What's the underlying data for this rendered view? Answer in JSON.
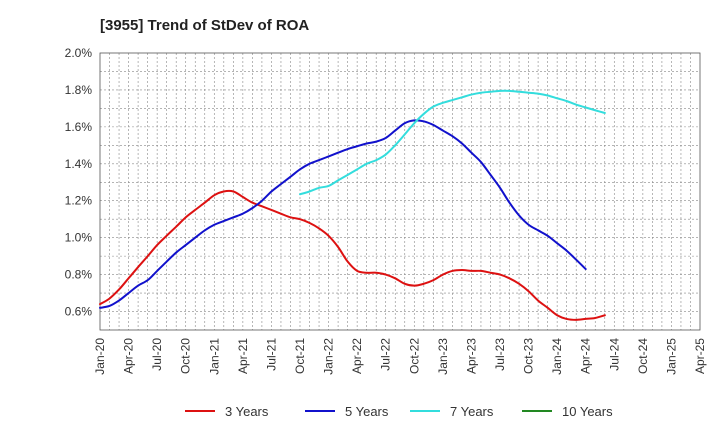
{
  "chart_data": {
    "type": "line",
    "title": "[3955]  Trend of StDev of ROA",
    "xlabel": "",
    "ylabel": "",
    "x_ticks": [
      "Jan-20",
      "Apr-20",
      "Jul-20",
      "Oct-20",
      "Jan-21",
      "Apr-21",
      "Jul-21",
      "Oct-21",
      "Jan-22",
      "Apr-22",
      "Jul-22",
      "Oct-22",
      "Jan-23",
      "Apr-23",
      "Jul-23",
      "Oct-23",
      "Jan-24",
      "Apr-24",
      "Jul-24",
      "Oct-24",
      "Jan-25",
      "Apr-25"
    ],
    "y_ticks": [
      "0.6%",
      "0.8%",
      "1.0%",
      "1.2%",
      "1.4%",
      "1.6%",
      "1.8%",
      "2.0%"
    ],
    "ylim": [
      0.5,
      2.0
    ],
    "xlim": [
      0,
      21
    ],
    "grid": true,
    "legend_position": "bottom",
    "series": [
      {
        "name": "3 Years",
        "color": "#dd1111",
        "points": [
          [
            0,
            0.64
          ],
          [
            0.33,
            0.67
          ],
          [
            0.67,
            0.72
          ],
          [
            1,
            0.78
          ],
          [
            1.33,
            0.84
          ],
          [
            1.67,
            0.9
          ],
          [
            2,
            0.96
          ],
          [
            2.33,
            1.01
          ],
          [
            2.67,
            1.06
          ],
          [
            3,
            1.11
          ],
          [
            3.33,
            1.15
          ],
          [
            3.67,
            1.19
          ],
          [
            4,
            1.23
          ],
          [
            4.33,
            1.25
          ],
          [
            4.67,
            1.25
          ],
          [
            5,
            1.22
          ],
          [
            5.33,
            1.19
          ],
          [
            5.67,
            1.17
          ],
          [
            6,
            1.15
          ],
          [
            6.33,
            1.13
          ],
          [
            6.67,
            1.11
          ],
          [
            7,
            1.1
          ],
          [
            7.33,
            1.08
          ],
          [
            7.67,
            1.05
          ],
          [
            8,
            1.01
          ],
          [
            8.33,
            0.95
          ],
          [
            8.67,
            0.87
          ],
          [
            9,
            0.82
          ],
          [
            9.33,
            0.81
          ],
          [
            9.67,
            0.81
          ],
          [
            10,
            0.8
          ],
          [
            10.33,
            0.78
          ],
          [
            10.67,
            0.75
          ],
          [
            11,
            0.74
          ],
          [
            11.33,
            0.75
          ],
          [
            11.67,
            0.77
          ],
          [
            12,
            0.8
          ],
          [
            12.33,
            0.82
          ],
          [
            12.67,
            0.825
          ],
          [
            13,
            0.82
          ],
          [
            13.33,
            0.82
          ],
          [
            13.67,
            0.81
          ],
          [
            14,
            0.8
          ],
          [
            14.33,
            0.78
          ],
          [
            14.67,
            0.75
          ],
          [
            15,
            0.71
          ],
          [
            15.33,
            0.66
          ],
          [
            15.67,
            0.62
          ],
          [
            16,
            0.58
          ],
          [
            16.33,
            0.56
          ],
          [
            16.67,
            0.555
          ],
          [
            17,
            0.56
          ],
          [
            17.33,
            0.565
          ],
          [
            17.67,
            0.58
          ]
        ]
      },
      {
        "name": "5 Years",
        "color": "#1111cc",
        "points": [
          [
            0,
            0.62
          ],
          [
            0.33,
            0.63
          ],
          [
            0.67,
            0.66
          ],
          [
            1,
            0.7
          ],
          [
            1.33,
            0.74
          ],
          [
            1.67,
            0.77
          ],
          [
            2,
            0.82
          ],
          [
            2.33,
            0.87
          ],
          [
            2.67,
            0.92
          ],
          [
            3,
            0.96
          ],
          [
            3.33,
            1.0
          ],
          [
            3.67,
            1.04
          ],
          [
            4,
            1.07
          ],
          [
            4.33,
            1.09
          ],
          [
            4.67,
            1.11
          ],
          [
            5,
            1.13
          ],
          [
            5.33,
            1.16
          ],
          [
            5.67,
            1.2
          ],
          [
            6,
            1.25
          ],
          [
            6.33,
            1.29
          ],
          [
            6.67,
            1.33
          ],
          [
            7,
            1.37
          ],
          [
            7.33,
            1.4
          ],
          [
            7.67,
            1.42
          ],
          [
            8,
            1.44
          ],
          [
            8.33,
            1.46
          ],
          [
            8.67,
            1.48
          ],
          [
            9,
            1.495
          ],
          [
            9.33,
            1.51
          ],
          [
            9.67,
            1.52
          ],
          [
            10,
            1.54
          ],
          [
            10.33,
            1.58
          ],
          [
            10.67,
            1.62
          ],
          [
            11,
            1.635
          ],
          [
            11.33,
            1.63
          ],
          [
            11.67,
            1.61
          ],
          [
            12,
            1.58
          ],
          [
            12.33,
            1.55
          ],
          [
            12.67,
            1.51
          ],
          [
            13,
            1.46
          ],
          [
            13.33,
            1.41
          ],
          [
            13.67,
            1.34
          ],
          [
            14,
            1.27
          ],
          [
            14.33,
            1.19
          ],
          [
            14.67,
            1.12
          ],
          [
            15,
            1.07
          ],
          [
            15.33,
            1.04
          ],
          [
            15.67,
            1.01
          ],
          [
            16,
            0.97
          ],
          [
            16.33,
            0.93
          ],
          [
            16.67,
            0.88
          ],
          [
            17,
            0.83
          ]
        ]
      },
      {
        "name": "7 Years",
        "color": "#33dddd",
        "points": [
          [
            7,
            1.235
          ],
          [
            7.33,
            1.25
          ],
          [
            7.67,
            1.27
          ],
          [
            8,
            1.28
          ],
          [
            8.33,
            1.31
          ],
          [
            8.67,
            1.34
          ],
          [
            9,
            1.37
          ],
          [
            9.33,
            1.4
          ],
          [
            9.67,
            1.42
          ],
          [
            10,
            1.45
          ],
          [
            10.33,
            1.5
          ],
          [
            10.67,
            1.56
          ],
          [
            11,
            1.62
          ],
          [
            11.33,
            1.67
          ],
          [
            11.67,
            1.71
          ],
          [
            12,
            1.73
          ],
          [
            12.33,
            1.745
          ],
          [
            12.67,
            1.76
          ],
          [
            13,
            1.775
          ],
          [
            13.33,
            1.785
          ],
          [
            13.67,
            1.79
          ],
          [
            14,
            1.795
          ],
          [
            14.33,
            1.795
          ],
          [
            14.67,
            1.79
          ],
          [
            15,
            1.785
          ],
          [
            15.33,
            1.78
          ],
          [
            15.67,
            1.77
          ],
          [
            16,
            1.755
          ],
          [
            16.33,
            1.74
          ],
          [
            16.67,
            1.72
          ],
          [
            17,
            1.705
          ],
          [
            17.33,
            1.69
          ],
          [
            17.67,
            1.675
          ]
        ]
      },
      {
        "name": "10 Years",
        "color": "#228822",
        "points": []
      }
    ]
  }
}
